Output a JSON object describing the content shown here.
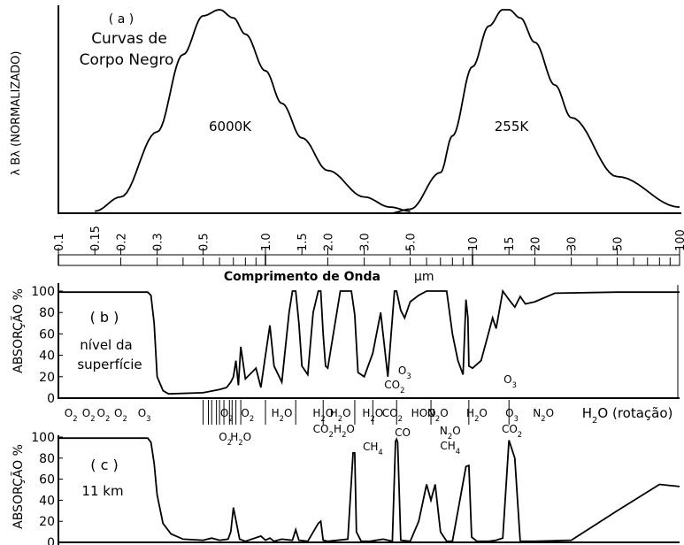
{
  "chart_data": [
    {
      "type": "line",
      "panel": "(a)",
      "title": "Curvas de Corpo Negro",
      "ylabel": "λ Bλ (NORMALIZADO)",
      "xlabel": "Comprimento de Onda",
      "xunit": "μm",
      "xscale": "log",
      "xlim": [
        0.1,
        100
      ],
      "ylim": [
        0,
        1
      ],
      "xticks": [
        "0.1",
        "0.15",
        "0.2",
        "0.3",
        "0.5",
        "1.0",
        "1.5",
        "2.0",
        "3.0",
        "5.0",
        "10",
        "15",
        "20",
        "30",
        "50",
        "100"
      ],
      "series": [
        {
          "name": "6000K",
          "x": [
            0.15,
            0.2,
            0.3,
            0.4,
            0.5,
            0.6,
            0.7,
            0.8,
            1.0,
            1.2,
            1.5,
            2.0,
            3.0,
            4.0,
            5.0
          ],
          "y": [
            0.01,
            0.08,
            0.4,
            0.78,
            0.97,
            1.0,
            0.96,
            0.88,
            0.7,
            0.54,
            0.37,
            0.21,
            0.08,
            0.03,
            0.01
          ]
        },
        {
          "name": "255K",
          "x": [
            4.0,
            5.0,
            7.0,
            8.0,
            10,
            12,
            14,
            15,
            17,
            20,
            25,
            30,
            50,
            100
          ],
          "y": [
            0.0,
            0.02,
            0.2,
            0.38,
            0.72,
            0.92,
            1.0,
            1.0,
            0.96,
            0.84,
            0.63,
            0.47,
            0.18,
            0.03
          ]
        }
      ]
    },
    {
      "type": "line",
      "panel": "(b)",
      "label1": "nível da",
      "label2": "superfície",
      "ylabel": "ABSORÇÃO %",
      "yticks": [
        "0",
        "20",
        "40",
        "60",
        "80",
        "100"
      ],
      "ylim": [
        0,
        100
      ],
      "xscale": "log",
      "xlim": [
        0.1,
        100
      ],
      "x": [
        0.1,
        0.27,
        0.28,
        0.29,
        0.3,
        0.32,
        0.34,
        0.5,
        0.6,
        0.65,
        0.68,
        0.7,
        0.72,
        0.74,
        0.76,
        0.8,
        0.9,
        0.95,
        1.0,
        1.05,
        1.1,
        1.2,
        1.3,
        1.35,
        1.4,
        1.45,
        1.5,
        1.6,
        1.7,
        1.8,
        1.85,
        1.9,
        1.95,
        2.0,
        2.3,
        2.5,
        2.6,
        2.7,
        2.8,
        3.0,
        3.3,
        3.6,
        3.9,
        4.2,
        4.3,
        4.5,
        4.7,
        5.0,
        5.5,
        6.0,
        6.5,
        7.5,
        8.0,
        8.5,
        9.0,
        9.3,
        9.5,
        9.6,
        10.0,
        11.0,
        12.0,
        12.5,
        13.0,
        14.0,
        15.0,
        16.0,
        17.0,
        18.0,
        20.0,
        25.0,
        50.0,
        100.0
      ],
      "values": [
        99,
        99,
        96,
        70,
        20,
        7,
        4,
        5,
        8,
        10,
        15,
        20,
        35,
        12,
        48,
        18,
        28,
        10,
        40,
        68,
        30,
        15,
        80,
        100,
        100,
        70,
        30,
        22,
        80,
        100,
        100,
        60,
        30,
        28,
        100,
        100,
        100,
        78,
        24,
        20,
        42,
        80,
        20,
        100,
        100,
        82,
        75,
        90,
        96,
        100,
        100,
        100,
        60,
        35,
        22,
        92,
        75,
        30,
        28,
        35,
        62,
        75,
        65,
        100,
        92,
        85,
        95,
        88,
        90,
        98,
        99,
        99
      ],
      "molecules_top": [
        "O2",
        "O2",
        "O2",
        "O2",
        "O3",
        "O2",
        "O2",
        "H2O",
        "H2O",
        "H2O",
        "H2O",
        "CO2",
        "HOO",
        "N2O",
        "H2O",
        "O3",
        "N2O",
        "H2O (rotação)"
      ],
      "molecules_bottom": [
        "O2",
        "H2O",
        "CO2",
        "H2O",
        "CH4",
        "CO",
        "N2O",
        "CH4",
        "CO2"
      ],
      "molecules_inner": [
        "CO2",
        "O3",
        "O3"
      ]
    },
    {
      "type": "line",
      "panel": "(c)",
      "label": "11  km",
      "ylabel": "ABSORÇÃO %",
      "yticks": [
        "0",
        "20",
        "40",
        "60",
        "80",
        "100"
      ],
      "ylim": [
        0,
        100
      ],
      "xscale": "log",
      "xlim": [
        0.1,
        100
      ],
      "x": [
        0.1,
        0.27,
        0.28,
        0.29,
        0.3,
        0.32,
        0.35,
        0.4,
        0.5,
        0.55,
        0.6,
        0.66,
        0.68,
        0.7,
        0.75,
        0.8,
        0.95,
        1.0,
        1.05,
        1.1,
        1.2,
        1.35,
        1.4,
        1.45,
        1.6,
        1.8,
        1.85,
        1.9,
        2.0,
        2.5,
        2.65,
        2.7,
        2.75,
        2.9,
        3.2,
        3.7,
        4.1,
        4.25,
        4.3,
        4.35,
        4.5,
        5.0,
        5.5,
        6.0,
        6.3,
        6.6,
        7.0,
        7.5,
        8.0,
        9.3,
        9.6,
        9.9,
        10.5,
        12.0,
        13.0,
        14.0,
        15.0,
        16.0,
        17.0,
        20.0,
        30.0,
        50.0,
        80.0,
        100.0
      ],
      "values": [
        99,
        99,
        95,
        75,
        45,
        18,
        8,
        3,
        2,
        4,
        2,
        3,
        10,
        33,
        3,
        1,
        6,
        2,
        4,
        1,
        3,
        2,
        12,
        2,
        1,
        18,
        20,
        2,
        1,
        3,
        85,
        85,
        10,
        1,
        1,
        3,
        1,
        96,
        98,
        95,
        2,
        1,
        20,
        55,
        40,
        55,
        10,
        1,
        1,
        72,
        73,
        5,
        1,
        1,
        2,
        4,
        97,
        80,
        1,
        1,
        2,
        30,
        55,
        53
      ],
      "molecules_top": [
        "O2",
        "O2",
        "O2",
        "O2",
        "O3"
      ]
    }
  ],
  "labels": {
    "title_a": "( a )",
    "title_line1": "Curvas de",
    "title_line2": "Corpo Negro",
    "temp1": "6000K",
    "temp2": "255K",
    "panel_b": "( b )",
    "panel_c": "( c )"
  }
}
